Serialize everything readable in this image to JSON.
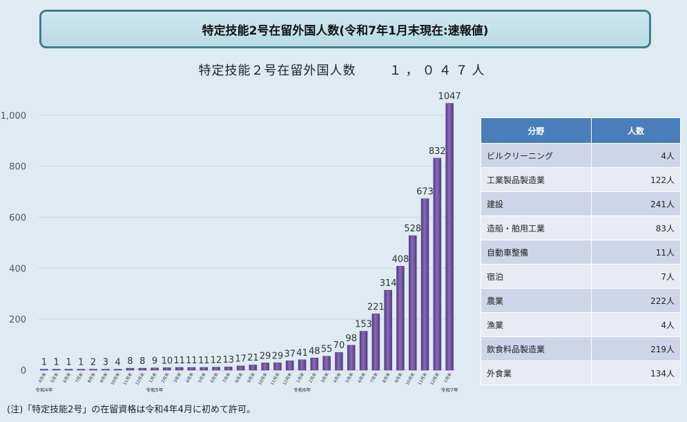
{
  "banner_title": "特定技能2号在留外国人数(令和7年1月末現在:速報値)",
  "subtitle": "特定技能２号在留外国人数",
  "subtitle_count": "１，０４７人",
  "note": "(注)「特定技能2号」の在留資格は令和4年4月に初めて許可。",
  "colors": {
    "bar": "#7a5aa8",
    "bar_dark": "#553a80",
    "header": "#4a7ebb",
    "grid": "#c8d7e0"
  },
  "table": {
    "headers": [
      "分野",
      "人数"
    ],
    "rows": [
      {
        "name": "ビルクリーニング",
        "count": "4人"
      },
      {
        "name": "工業製品製造業",
        "count": "122人"
      },
      {
        "name": "建設",
        "count": "241人"
      },
      {
        "name": "造船・舶用工業",
        "count": "83人"
      },
      {
        "name": "自動車整備",
        "count": "11人"
      },
      {
        "name": "宿泊",
        "count": "7人"
      },
      {
        "name": "農業",
        "count": "222人"
      },
      {
        "name": "漁業",
        "count": "4人"
      },
      {
        "name": "飲食料品製造業",
        "count": "219人"
      },
      {
        "name": "外食業",
        "count": "134人"
      }
    ]
  },
  "chart_data": {
    "type": "bar",
    "categories": [
      "4月末",
      "5月末",
      "6月末",
      "7月末",
      "8月末",
      "9月末",
      "10月末",
      "11月末",
      "12月末",
      "1月末",
      "2月末",
      "3月末",
      "4月末",
      "5月末",
      "6月末",
      "7月末",
      "8月末",
      "9月末",
      "10月末",
      "11月末",
      "12月末",
      "1月末",
      "2月末",
      "3月末",
      "4月末",
      "5月末",
      "6月末",
      "7月末",
      "8月末",
      "9月末",
      "10月末",
      "11月末",
      "12月末",
      "1月末"
    ],
    "year_labels": [
      {
        "index": 0,
        "label": "令和4年"
      },
      {
        "index": 9,
        "label": "令和5年"
      },
      {
        "index": 21,
        "label": "令和6年"
      },
      {
        "index": 33,
        "label": "令和7年"
      }
    ],
    "values": [
      1,
      1,
      1,
      1,
      2,
      3,
      4,
      8,
      8,
      9,
      10,
      11,
      11,
      11,
      12,
      13,
      17,
      21,
      29,
      29,
      37,
      41,
      48,
      55,
      70,
      98,
      153,
      221,
      314,
      408,
      528,
      673,
      832,
      1047
    ],
    "ylim": [
      0,
      1100
    ],
    "yticks": [
      0,
      200,
      400,
      600,
      800,
      1000
    ],
    "ytick_labels": [
      "0",
      "200",
      "400",
      "600",
      "800",
      "1,000"
    ],
    "grid": true,
    "title": "",
    "xlabel": "",
    "ylabel": ""
  }
}
